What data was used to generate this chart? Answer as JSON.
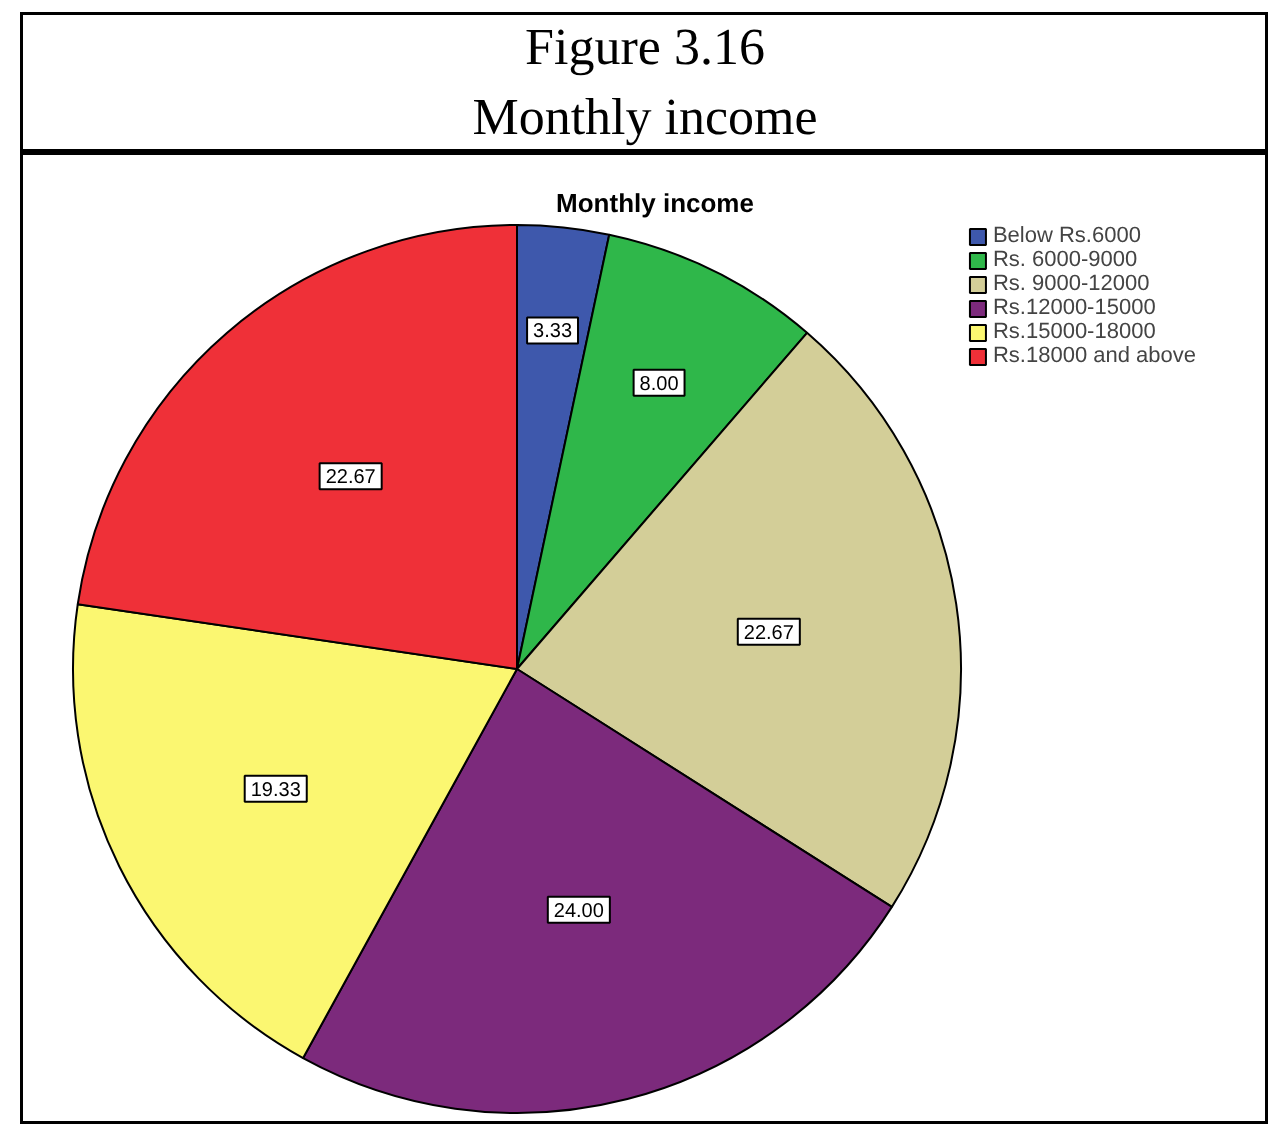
{
  "chart_data": {
    "type": "pie",
    "title": "Monthly income",
    "annotations": [
      "Figure 3.16",
      "Monthly income"
    ],
    "categories": [
      "Below Rs.6000",
      "Rs. 6000-9000",
      "Rs. 9000-12000",
      "Rs.12000-15000",
      "Rs.15000-18000",
      "Rs.18000 and above"
    ],
    "values": [
      3.33,
      8.0,
      22.67,
      24.0,
      19.33,
      22.67
    ],
    "colors": [
      "#3e58ac",
      "#2fb74a",
      "#d3ce98",
      "#7c2a7c",
      "#fbf771",
      "#ef3038"
    ],
    "value_labels": [
      "3.33",
      "8.00",
      "22.67",
      "24.00",
      "19.33",
      "22.67"
    ],
    "legend": "top right"
  }
}
